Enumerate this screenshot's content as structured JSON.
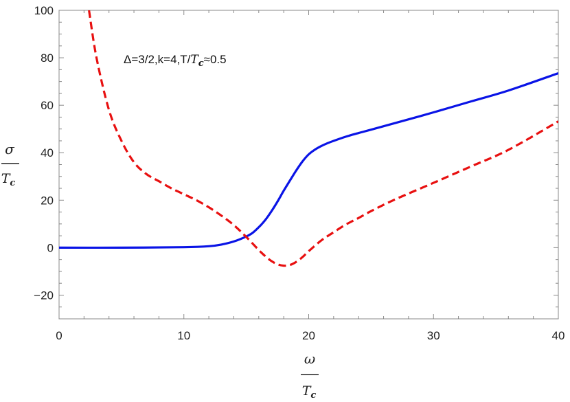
{
  "chart_data": {
    "type": "line",
    "title": "",
    "annotation": {
      "prefix": "Δ=3/2,k=4,T/",
      "var": "T",
      "sub": "c",
      "suffix": "≈0.5"
    },
    "xlabel": {
      "num": "ω",
      "den_var": "T",
      "den_sub": "c"
    },
    "ylabel": {
      "num": "σ",
      "den_var": "T",
      "den_sub": "c"
    },
    "xlim": [
      0,
      40
    ],
    "ylim": [
      -30,
      100
    ],
    "xticks": [
      0,
      10,
      20,
      30,
      40
    ],
    "yticks": [
      -20,
      0,
      20,
      40,
      60,
      80,
      100
    ],
    "grid": false,
    "series": [
      {
        "style": "solid",
        "color": "#0a14e6",
        "x": [
          0,
          5,
          10,
          12,
          13,
          14,
          15,
          15.5,
          16,
          16.5,
          17,
          17.5,
          18,
          18.5,
          19,
          19.5,
          20,
          20.5,
          21,
          21.5,
          22,
          23,
          24,
          25,
          27,
          30,
          33,
          36,
          40
        ],
        "y": [
          0,
          0,
          0.2,
          0.6,
          1.3,
          2.6,
          4.7,
          6.2,
          8.6,
          11.5,
          15.2,
          19.4,
          24.0,
          28.3,
          32.5,
          36.3,
          39.3,
          41.3,
          42.8,
          44.0,
          45.0,
          46.8,
          48.3,
          49.7,
          52.6,
          57.0,
          61.6,
          66.2,
          73.5
        ]
      },
      {
        "style": "dashed",
        "color": "#e81010",
        "x": [
          2.4,
          3,
          4,
          5,
          6,
          7,
          8,
          9,
          10,
          11,
          12,
          13,
          14,
          15,
          16,
          16.5,
          17,
          17.5,
          18,
          18.5,
          19,
          19.5,
          20,
          21,
          22,
          23,
          24,
          25,
          27,
          30,
          33,
          36,
          40
        ],
        "y": [
          100,
          80,
          58,
          45,
          36,
          31,
          28,
          25,
          22.5,
          20,
          17,
          13.5,
          9.5,
          4.5,
          -1,
          -3.5,
          -5.6,
          -7,
          -7.6,
          -7.3,
          -6,
          -4,
          -1.5,
          3,
          6.5,
          9.8,
          12.5,
          15.4,
          20.5,
          27.3,
          34.2,
          41.2,
          53.2
        ]
      }
    ]
  }
}
